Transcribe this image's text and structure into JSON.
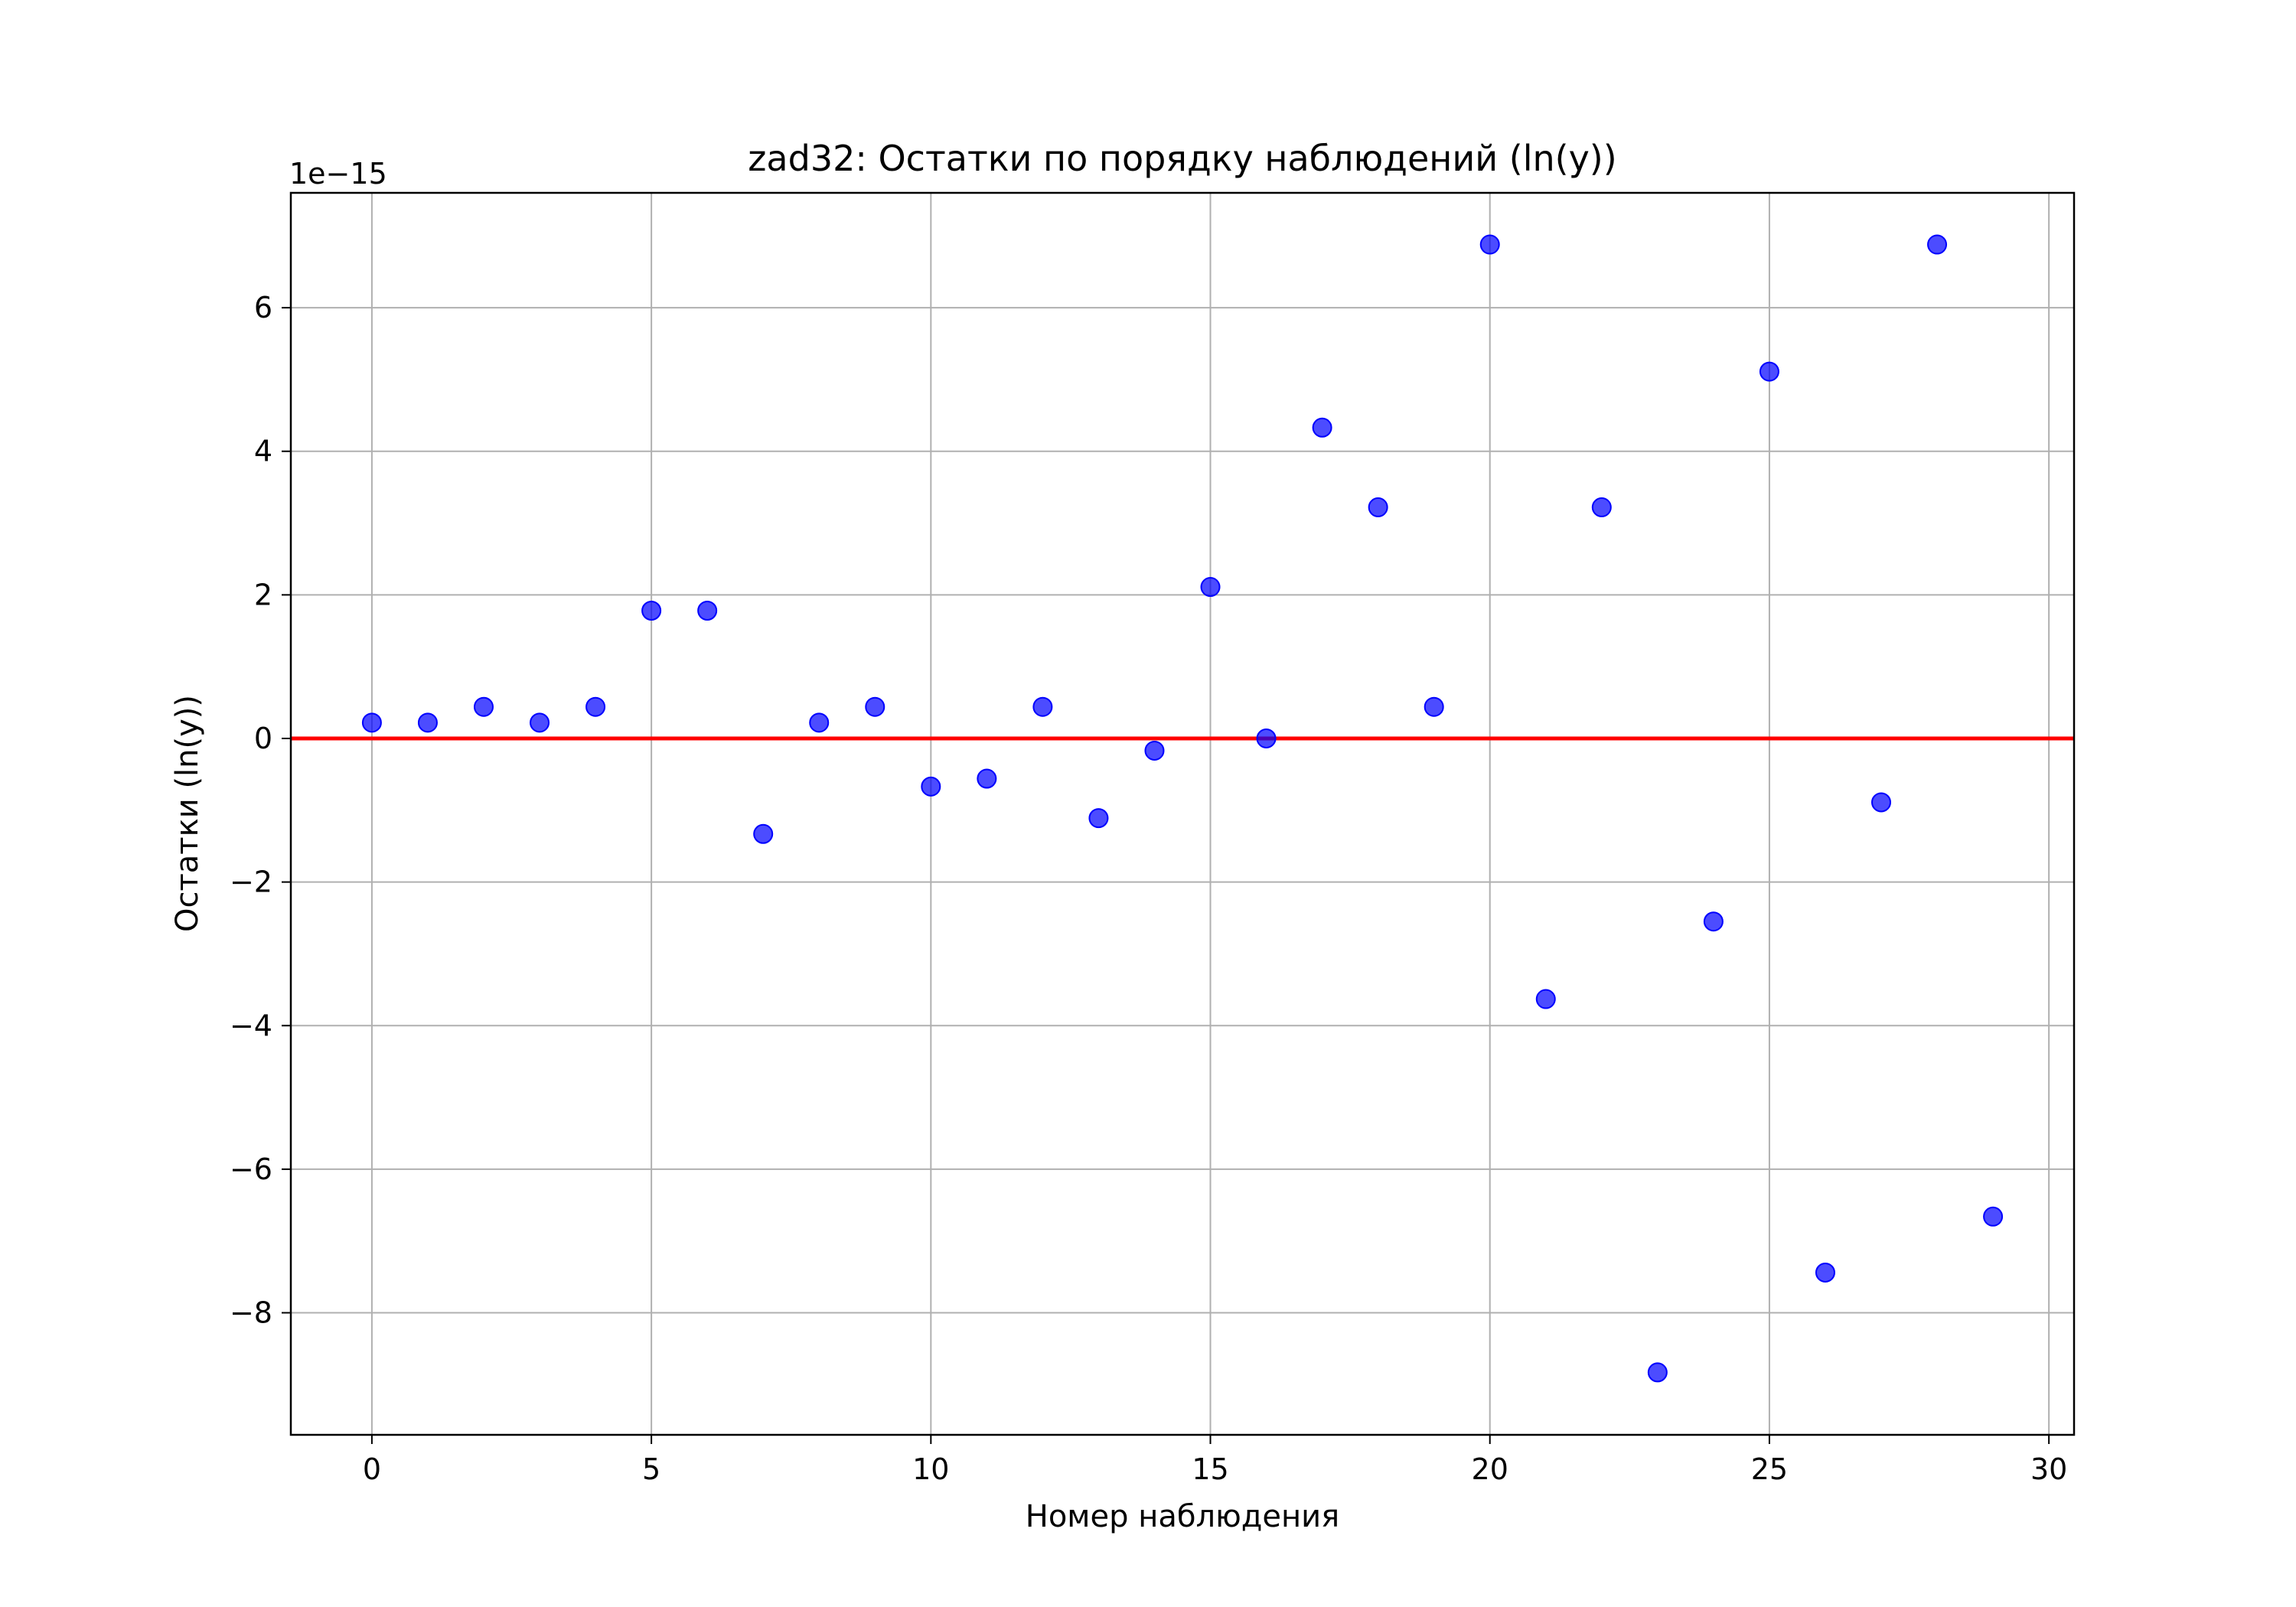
{
  "chart_data": {
    "type": "scatter",
    "title": "zad32: Остатки по порядку наблюдений (ln(y))",
    "xlabel": "Номер наблюдения",
    "ylabel": "Остатки (ln(y))",
    "y_offset_label": "1e−15",
    "y_scale_note": "values shown in units of 1e-15",
    "xlim": [
      -1.45,
      30.45
    ],
    "ylim": [
      -9.7,
      7.6
    ],
    "x_ticks": [
      0,
      5,
      10,
      15,
      20,
      25,
      30
    ],
    "x_tick_labels": [
      "0",
      "5",
      "10",
      "15",
      "20",
      "25",
      "30"
    ],
    "y_ticks": [
      -8,
      -6,
      -4,
      -2,
      0,
      2,
      4,
      6
    ],
    "y_tick_labels": [
      "−8",
      "−6",
      "−4",
      "−2",
      "0",
      "2",
      "4",
      "6"
    ],
    "grid": true,
    "reference_line": {
      "y": 0,
      "color": "#ff0000"
    },
    "point_color": "#0000ff",
    "x": [
      0,
      1,
      2,
      3,
      4,
      5,
      6,
      7,
      8,
      9,
      10,
      11,
      12,
      13,
      14,
      15,
      16,
      17,
      18,
      19,
      20,
      21,
      22,
      23,
      24,
      25,
      26,
      27,
      28,
      29
    ],
    "y": [
      0.22,
      0.22,
      0.44,
      0.22,
      0.44,
      1.78,
      1.78,
      -1.33,
      0.22,
      0.44,
      -0.67,
      -0.56,
      0.44,
      -1.11,
      -0.17,
      2.11,
      0.0,
      4.33,
      3.22,
      0.44,
      6.88,
      -3.63,
      3.22,
      -8.83,
      -2.55,
      5.11,
      -7.44,
      -0.89,
      6.88,
      -6.66
    ]
  }
}
